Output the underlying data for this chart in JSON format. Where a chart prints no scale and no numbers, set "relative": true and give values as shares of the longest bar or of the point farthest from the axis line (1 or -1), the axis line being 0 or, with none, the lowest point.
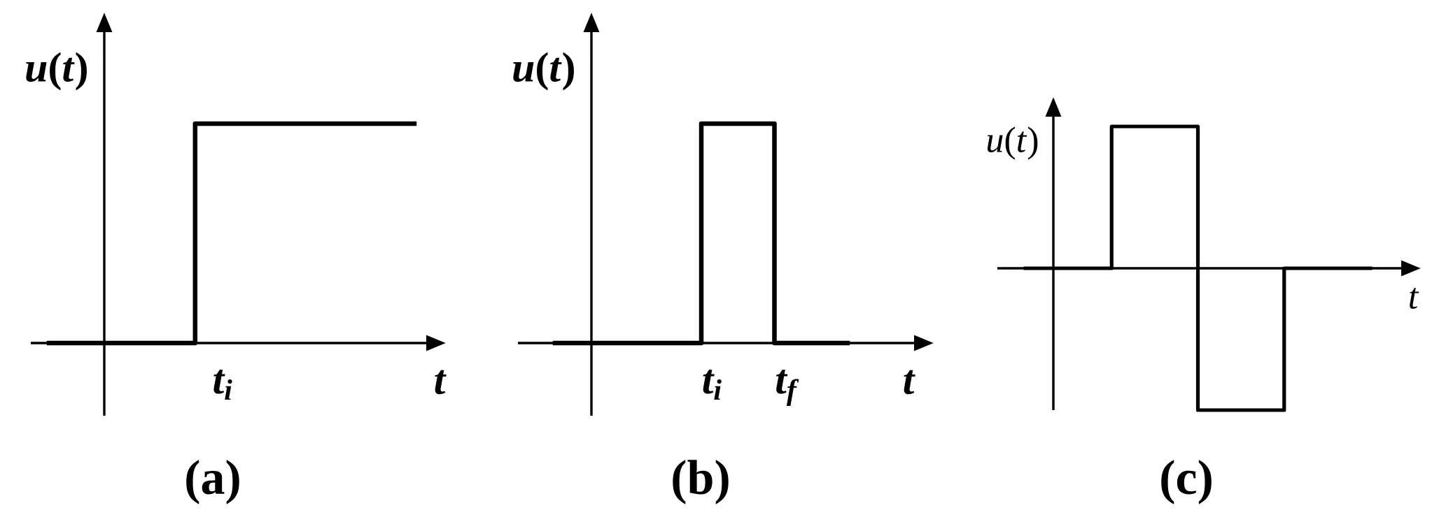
{
  "chart_data": [
    {
      "type": "step",
      "title": "(a)",
      "xlabel": "t",
      "ylabel": "*u*(*t*)",
      "relative": true,
      "categories": [
        null,
        null,
        null,
        null,
        null,
        null
      ],
      "values": [
        0,
        0,
        1,
        1,
        1,
        1
      ],
      "color": "#000000",
      "annotations": [
        "t$_{i}$"
      ]
    },
    {
      "type": "step",
      "title": "(b)",
      "xlabel": "t",
      "ylabel": "*u*(*t*)",
      "relative": true,
      "categories": [
        null,
        null,
        null,
        null,
        null
      ],
      "values": [
        0,
        0,
        1,
        0,
        0
      ],
      "color": "#000000",
      "annotations": [
        "t$_{i}$",
        "t$_{f}$"
      ]
    },
    {
      "type": "step",
      "title": "(c)",
      "xlabel": "t",
      "ylabel": "*u*(*t*)",
      "relative": true,
      "categories": [
        null,
        null,
        null,
        null,
        null
      ],
      "values": [
        0,
        1,
        -1,
        0,
        0
      ],
      "color": "#000000"
    }
  ]
}
